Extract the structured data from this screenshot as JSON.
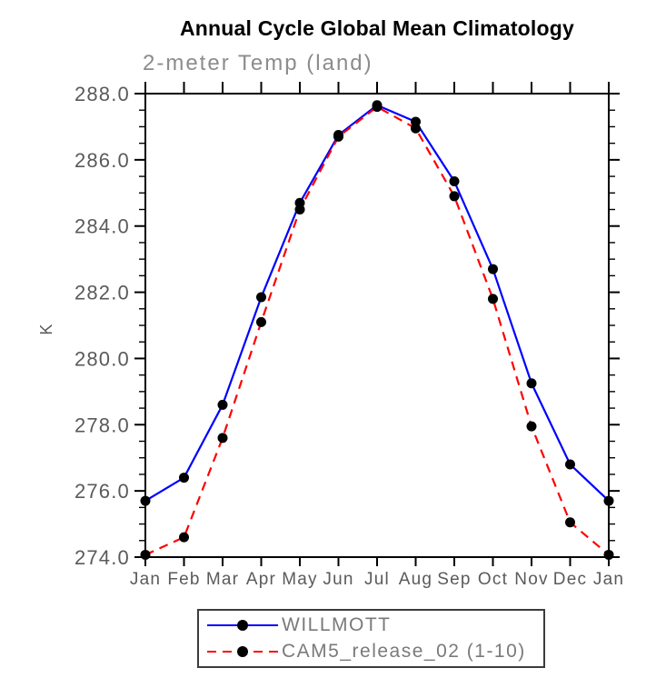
{
  "title": "Annual Cycle Global Mean Climatology",
  "subtitle": "2-meter Temp (land)",
  "chart_data": {
    "type": "line",
    "title": "Annual Cycle Global Mean Climatology",
    "subtitle": "2-meter Temp (land)",
    "xlabel": "",
    "ylabel": "K",
    "categories": [
      "Jan",
      "Feb",
      "Mar",
      "Apr",
      "May",
      "Jun",
      "Jul",
      "Aug",
      "Sep",
      "Oct",
      "Nov",
      "Dec",
      "Jan"
    ],
    "series": [
      {
        "name": "WILLMOTT",
        "color": "#0000ff",
        "line_style": "solid",
        "marker": "black-dot",
        "values": [
          275.7,
          276.4,
          278.6,
          281.85,
          284.7,
          286.75,
          287.65,
          287.15,
          285.35,
          282.7,
          279.25,
          276.8,
          275.7
        ]
      },
      {
        "name": "CAM5_release_02 (1-10)",
        "color": "#ff0000",
        "line_style": "dashed",
        "marker": "black-dot",
        "values": [
          274.07,
          274.6,
          277.6,
          281.1,
          284.5,
          286.7,
          287.6,
          286.95,
          284.9,
          281.8,
          277.95,
          275.05,
          274.07
        ]
      }
    ],
    "ylim": [
      274.0,
      288.0
    ],
    "ytick_step": 2.0,
    "yminor_step": 0.5,
    "ytick_labels": [
      "274.0",
      "276.0",
      "278.0",
      "280.0",
      "282.0",
      "284.0",
      "286.0",
      "288.0"
    ],
    "grid": false,
    "legend_position": "bottom",
    "tick_direction": "out"
  },
  "colors": {
    "axis": "#000000",
    "tick_label": "#5a5a5a",
    "subtitle": "#8c8c8c",
    "legend_text": "#7a7a7a",
    "marker": "#000000",
    "series1": "#0000ff",
    "series2": "#ff0000"
  }
}
